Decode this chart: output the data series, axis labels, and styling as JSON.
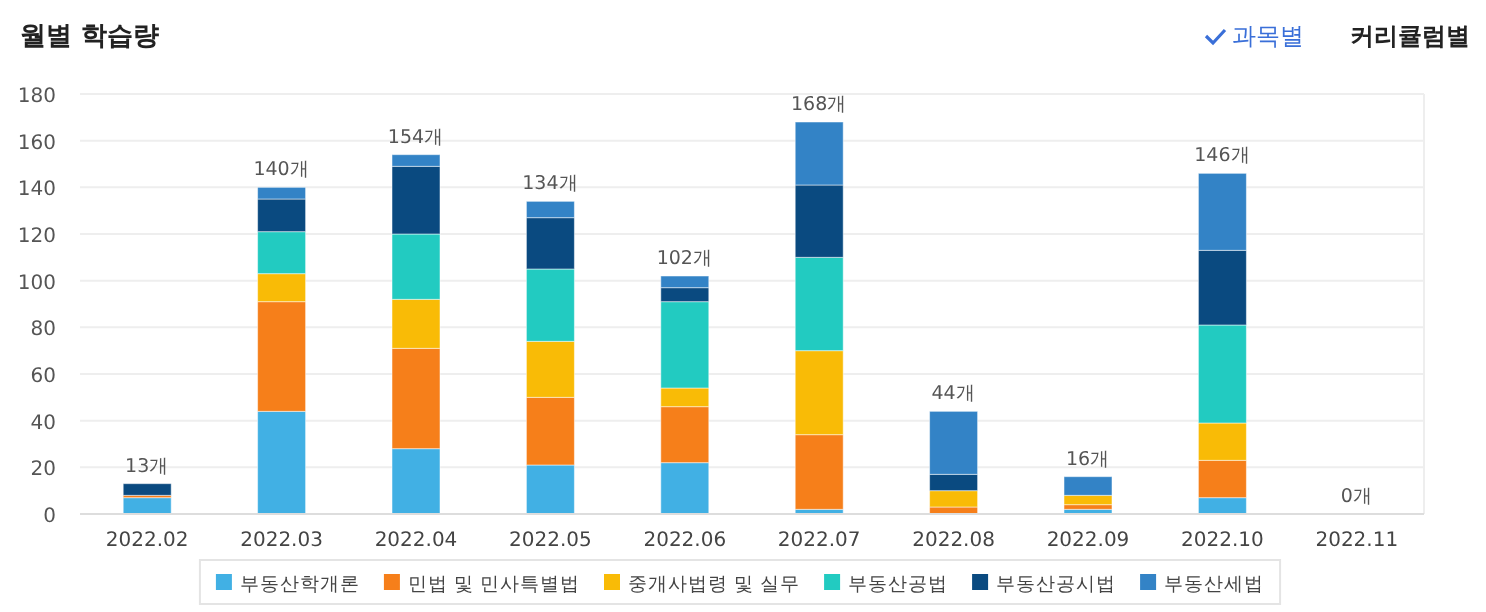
{
  "chart_data": {
    "type": "bar",
    "title": "월별 학습량",
    "stacked": true,
    "annotations": [
      "과목별",
      "커리큘럼별"
    ],
    "categories": [
      "2022.02",
      "2022.03",
      "2022.04",
      "2022.05",
      "2022.06",
      "2022.07",
      "2022.08",
      "2022.09",
      "2022.10",
      "2022.11"
    ],
    "series": [
      {
        "name": "부동산학개론",
        "color": "#41b0e4",
        "values": [
          7,
          44,
          28,
          21,
          22,
          2,
          0,
          2,
          7,
          0
        ]
      },
      {
        "name": "민법 및 민사특별법",
        "color": "#f67f1a",
        "values": [
          1,
          47,
          43,
          29,
          24,
          32,
          3,
          2,
          16,
          0
        ]
      },
      {
        "name": "중개사법령 및 실무",
        "color": "#f9bb06",
        "values": [
          0,
          12,
          21,
          24,
          8,
          36,
          7,
          4,
          16,
          0
        ]
      },
      {
        "name": "부동산공법",
        "color": "#22cbc1",
        "values": [
          0,
          18,
          28,
          31,
          37,
          40,
          0,
          0,
          42,
          0
        ]
      },
      {
        "name": "부동산공시법",
        "color": "#0a4a80",
        "values": [
          5,
          14,
          29,
          22,
          6,
          31,
          7,
          0,
          32,
          0
        ]
      },
      {
        "name": "부동산세법",
        "color": "#3383c6",
        "values": [
          0,
          5,
          5,
          7,
          5,
          27,
          27,
          8,
          33,
          0
        ]
      }
    ],
    "totals": [
      "13개",
      "140개",
      "154개",
      "134개",
      "102개",
      "168개",
      "44개",
      "16개",
      "146개",
      "0개"
    ],
    "ylim": [
      0,
      180
    ],
    "yticks": [
      0,
      20,
      40,
      60,
      80,
      100,
      120,
      140,
      160,
      180
    ],
    "grid": "y",
    "legend": "bottom"
  }
}
